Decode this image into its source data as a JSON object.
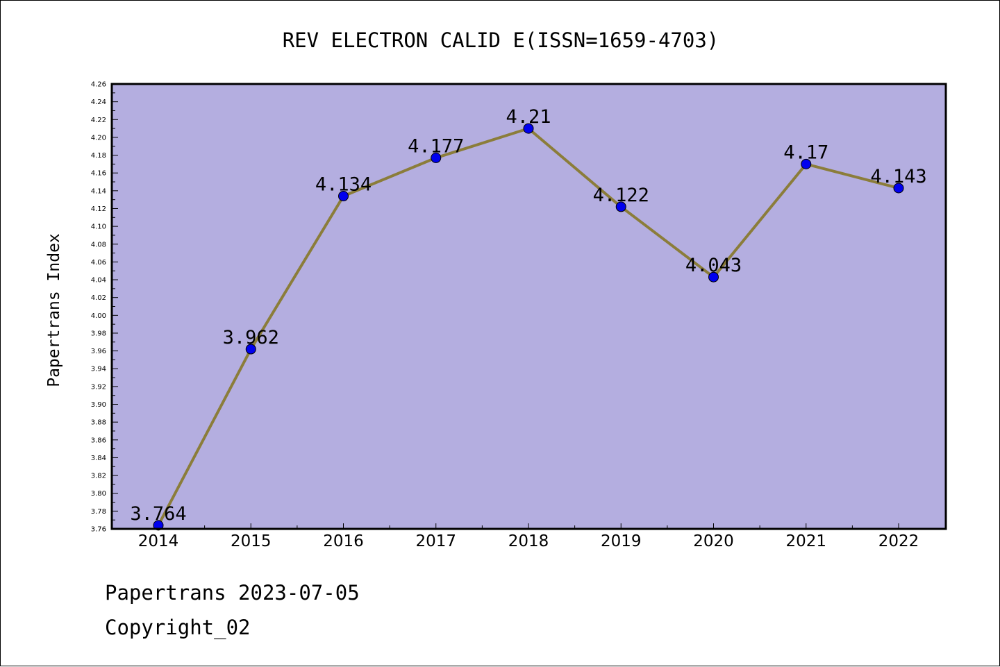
{
  "chart_data": {
    "type": "line",
    "title": "REV ELECTRON CALID E(ISSN=1659-4703)",
    "xlabel": "",
    "ylabel": "Papertrans Index",
    "categories": [
      "2014",
      "2015",
      "2016",
      "2017",
      "2018",
      "2019",
      "2020",
      "2021",
      "2022"
    ],
    "values": [
      3.764,
      3.962,
      4.134,
      4.177,
      4.21,
      4.122,
      4.043,
      4.17,
      4.143
    ],
    "data_labels": [
      "3.764",
      "3.962",
      "4.134",
      "4.177",
      "4.21",
      "4.122",
      "4.043",
      "4.17",
      "4.143"
    ],
    "ylim": [
      3.76,
      4.26
    ],
    "yticks": [
      "3.76",
      "3.78",
      "3.80",
      "3.82",
      "3.84",
      "3.86",
      "3.88",
      "3.90",
      "3.92",
      "3.94",
      "3.96",
      "3.98",
      "4.00",
      "4.02",
      "4.04",
      "4.06",
      "4.08",
      "4.10",
      "4.12",
      "4.14",
      "4.16",
      "4.18",
      "4.20",
      "4.22",
      "4.24",
      "4.26"
    ],
    "grid": false,
    "legend": "none",
    "colors": {
      "plot_background": "#b4aee0",
      "line": "#8b7d3a",
      "marker": "#0000ee"
    }
  },
  "footer": {
    "source": "Papertrans 2023-07-05",
    "copyright": "Copyright_02"
  }
}
